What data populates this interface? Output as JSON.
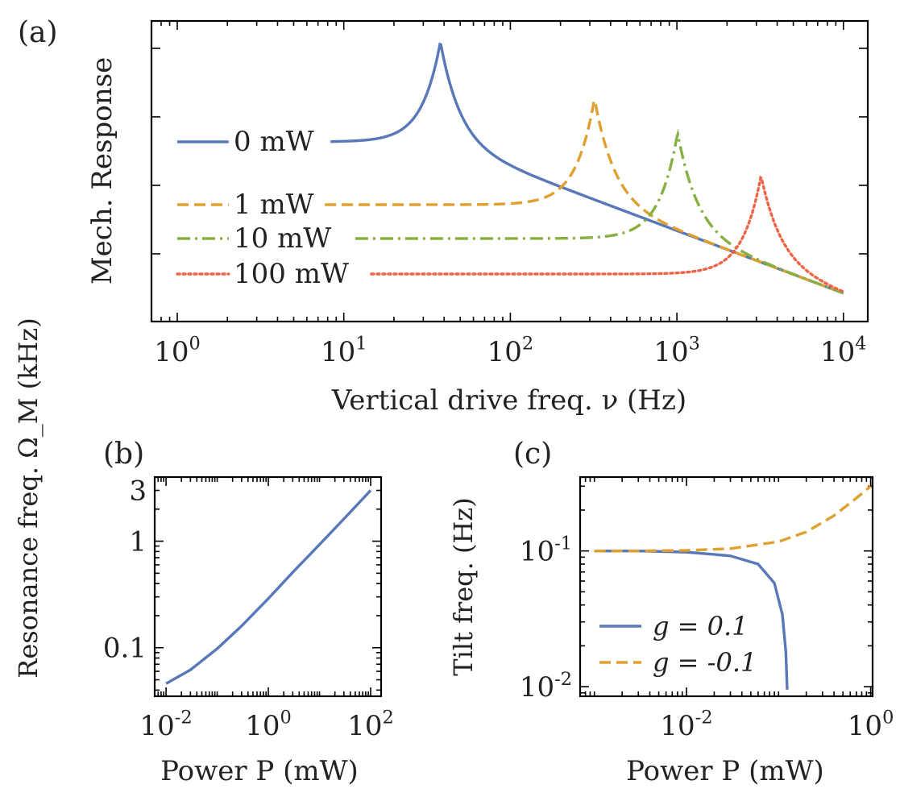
{
  "panels": {
    "a": {
      "label": "(a)"
    },
    "b": {
      "label": "(b)"
    },
    "c": {
      "label": "(c)"
    }
  },
  "chart_data": [
    {
      "panel": "(a)",
      "type": "line",
      "xlabel": "Vertical drive freq. ν (Hz)",
      "ylabel": "Mech. Response",
      "xscale": "log",
      "xlim": [
        0.7,
        14000
      ],
      "xticks": [
        1,
        10,
        100,
        1000,
        10000
      ],
      "xtick_labels": [
        "10^0",
        "10^1",
        "10^2",
        "10^3",
        "10^4"
      ],
      "yticks_unlabeled": true,
      "series": [
        {
          "name": "0 mW",
          "resonance": 38,
          "color": "#5878b8",
          "style": "solid"
        },
        {
          "name": "1 mW",
          "resonance": 320,
          "color": "#e0a030",
          "style": "dashed"
        },
        {
          "name": "10 mW",
          "resonance": 1010,
          "color": "#86b040",
          "style": "dashdot"
        },
        {
          "name": "100 mW",
          "resonance": 3200,
          "color": "#ee6448",
          "style": "dotted"
        }
      ],
      "x_range": [
        1,
        10000
      ]
    },
    {
      "panel": "(b)",
      "type": "line",
      "xlabel": "Power P (mW)",
      "ylabel": "Resonance freq. Ω_M (kHz)",
      "xscale": "log",
      "yscale": "log",
      "xlim": [
        0.006,
        160
      ],
      "ylim": [
        0.035,
        4
      ],
      "xticks": [
        0.01,
        1,
        100
      ],
      "xtick_labels": [
        "10^-2",
        "10^0",
        "10^2"
      ],
      "yticks": [
        0.1,
        1,
        3
      ],
      "ytick_labels": [
        "0.1",
        "1",
        "3"
      ],
      "series": [
        {
          "name": "",
          "color": "#5878b8",
          "style": "solid",
          "x": [
            0.01,
            0.03,
            0.1,
            0.3,
            1,
            3,
            10,
            30,
            100
          ],
          "y": [
            0.046,
            0.062,
            0.098,
            0.16,
            0.29,
            0.51,
            0.93,
            1.62,
            3.0
          ]
        }
      ]
    },
    {
      "panel": "(c)",
      "type": "line",
      "xlabel": "Power P (mW)",
      "ylabel": "Tilt freq. (Hz)",
      "xscale": "log",
      "yscale": "log",
      "xlim": [
        0.0007,
        1.05
      ],
      "ylim": [
        0.0085,
        0.35
      ],
      "xticks": [
        0.01,
        1
      ],
      "xtick_labels": [
        "10^-2",
        "10^0"
      ],
      "yticks": [
        0.01,
        0.1
      ],
      "ytick_labels": [
        "10^-2",
        "10^-1"
      ],
      "legend": "lower-left",
      "series": [
        {
          "name": "g = 0.1",
          "color": "#5878b8",
          "style": "solid",
          "x": [
            0.001,
            0.003,
            0.01,
            0.03,
            0.06,
            0.09,
            0.11,
            0.12,
            0.124
          ],
          "y": [
            0.1,
            0.1,
            0.098,
            0.092,
            0.08,
            0.058,
            0.034,
            0.018,
            0.0095
          ]
        },
        {
          "name": "g = -0.1",
          "color": "#e0a030",
          "style": "dashed",
          "x": [
            0.001,
            0.003,
            0.01,
            0.03,
            0.1,
            0.2,
            0.4,
            0.7,
            1.0
          ],
          "y": [
            0.1,
            0.1,
            0.101,
            0.104,
            0.117,
            0.138,
            0.182,
            0.245,
            0.3
          ]
        }
      ]
    }
  ]
}
